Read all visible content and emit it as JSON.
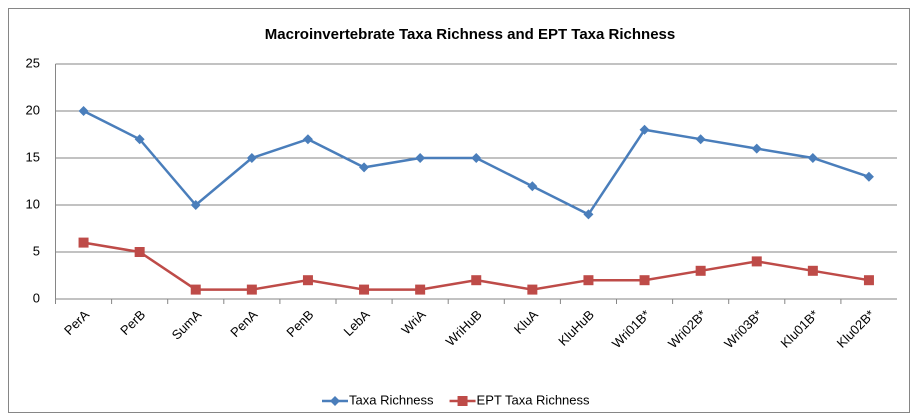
{
  "chart_data": {
    "type": "line",
    "title": "Macroinvertebrate Taxa Richness and EPT Taxa Richness",
    "categories": [
      "PerA",
      "PerB",
      "SumA",
      "PenA",
      "PenB",
      "LebA",
      "WriA",
      "WriHuB",
      "KluA",
      "KluHuB",
      "Wri01B*",
      "Wri02B*",
      "Wri03B*",
      "Klu01B*",
      "Klu02B*"
    ],
    "series": [
      {
        "name": "Taxa Richness",
        "color": "#4a7ebb",
        "marker": "diamond",
        "values": [
          20,
          17,
          10,
          15,
          17,
          14,
          15,
          15,
          12,
          9,
          18,
          17,
          16,
          15,
          13
        ]
      },
      {
        "name": "EPT Taxa Richness",
        "color": "#be4b48",
        "marker": "square",
        "values": [
          6,
          5,
          1,
          1,
          2,
          1,
          1,
          2,
          1,
          2,
          2,
          3,
          4,
          3,
          2
        ]
      }
    ],
    "ylim": [
      0,
      25
    ],
    "yticks": [
      0,
      5,
      10,
      15,
      20,
      25
    ],
    "grid": true,
    "legend": "bottom"
  }
}
